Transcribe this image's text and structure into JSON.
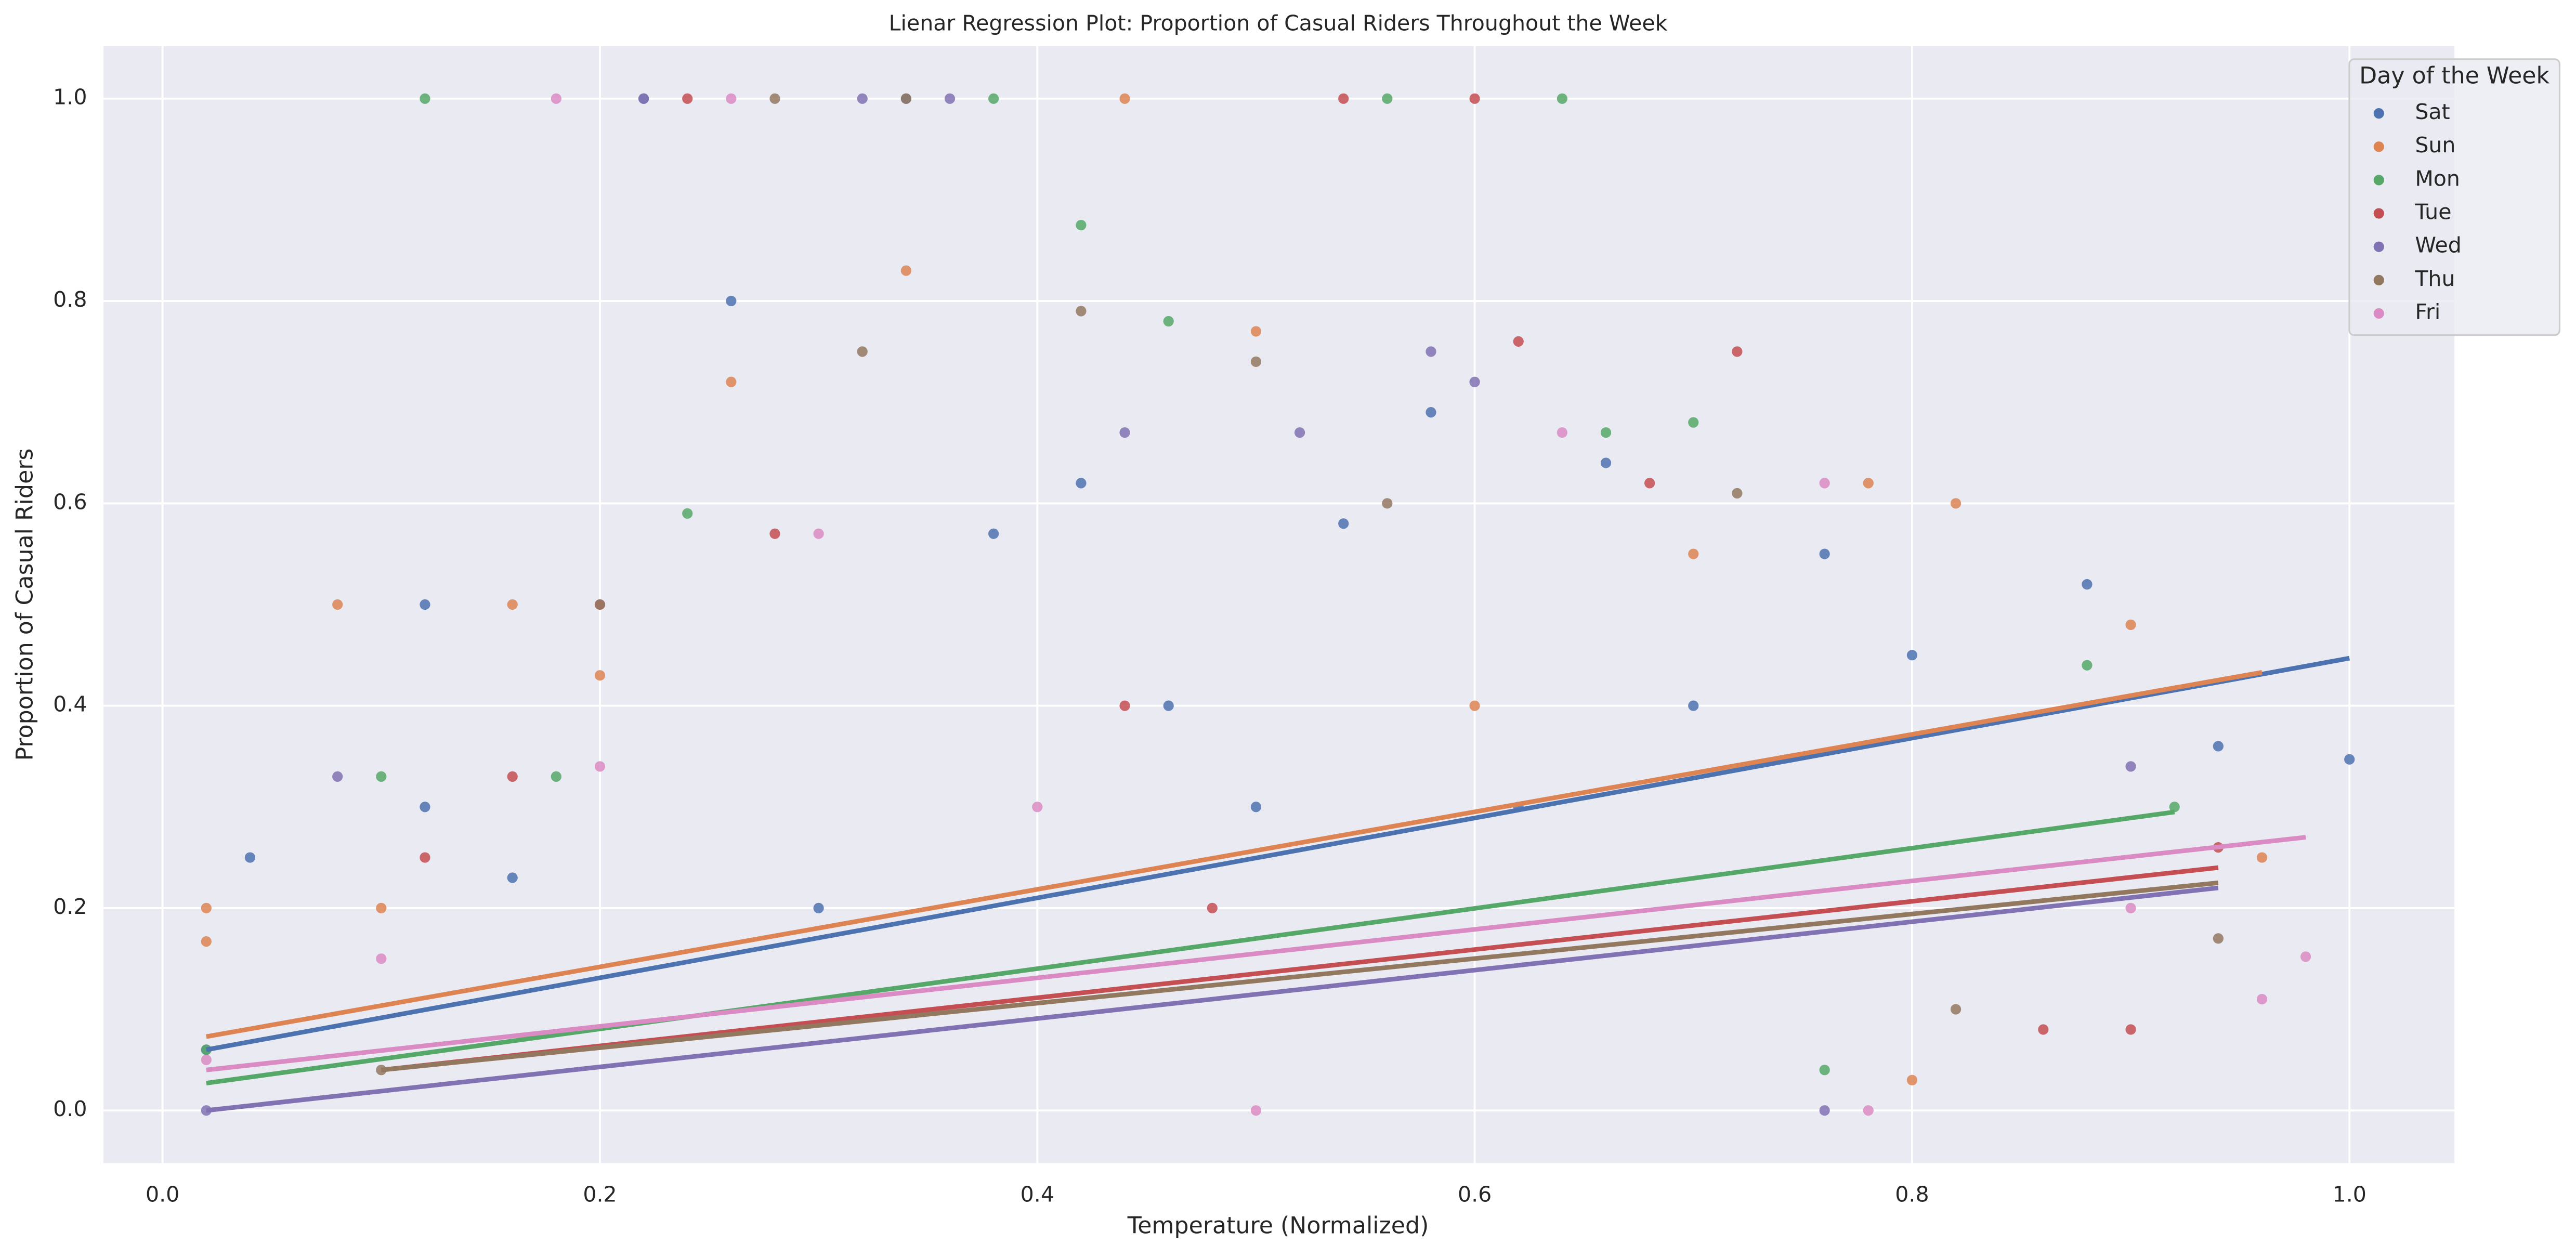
{
  "chart_data": {
    "type": "scatter",
    "title": "Lienar Regression Plot: Proportion of Casual Riders Throughout the Week",
    "x_label": "Temperature (Normalized)",
    "y_label": "Proportion of Casual Riders",
    "legend_title": "Day of the Week",
    "legend_position": "upper right",
    "grid": true,
    "xlim": [
      -0.027,
      1.048
    ],
    "ylim": [
      -0.052,
      1.052
    ],
    "xticks": [
      {
        "value": 0,
        "label": "0.0"
      },
      0.2,
      0.4,
      0.6,
      0.8,
      {
        "value": 1,
        "label": "1.0"
      }
    ],
    "yticks": [
      {
        "value": 0,
        "label": "0.0"
      },
      0.2,
      0.4,
      0.6,
      0.8,
      {
        "value": 1,
        "label": "1.0"
      }
    ],
    "series": [
      {
        "name": "Sat",
        "color": "#4c72b0",
        "x": [
          0.02,
          0.04,
          0.12,
          0.16,
          0.22,
          0.26,
          0.3,
          0.34,
          0.38,
          0.42,
          0.46,
          0.5,
          0.54,
          0.58,
          0.62,
          0.66,
          0.7,
          0.76,
          0.8,
          0.88,
          0.94,
          1.0,
          0.12
        ],
        "values": [
          0.06,
          0.25,
          0.5,
          0.23,
          1.0,
          0.8,
          0.2,
          1.0,
          0.57,
          0.62,
          0.4,
          0.3,
          0.58,
          0.69,
          0.3,
          0.64,
          0.4,
          0.55,
          0.45,
          0.52,
          0.36,
          0.347,
          0.3
        ],
        "fit": {
          "x": [
            0.02,
            1.0
          ],
          "values": [
            0.06,
            0.447
          ]
        }
      },
      {
        "name": "Sun",
        "color": "#dd8452",
        "x": [
          0.02,
          0.08,
          0.1,
          0.16,
          0.2,
          0.26,
          0.34,
          0.44,
          0.5,
          0.6,
          0.7,
          0.78,
          0.82,
          0.9,
          0.96,
          0.8,
          0.02
        ],
        "values": [
          0.2,
          0.5,
          0.2,
          0.5,
          0.43,
          0.72,
          0.83,
          1.0,
          0.77,
          0.4,
          0.55,
          0.62,
          0.6,
          0.48,
          0.25,
          0.03,
          0.167
        ],
        "fit": {
          "x": [
            0.02,
            0.96
          ],
          "values": [
            0.073,
            0.433
          ]
        }
      },
      {
        "name": "Mon",
        "color": "#55a868",
        "x": [
          0.02,
          0.1,
          0.12,
          0.18,
          0.24,
          0.38,
          0.42,
          0.46,
          0.56,
          0.64,
          0.66,
          0.7,
          0.76,
          0.88,
          0.92
        ],
        "values": [
          0.06,
          0.33,
          1.0,
          0.33,
          0.59,
          1.0,
          0.875,
          0.78,
          1.0,
          1.0,
          0.67,
          0.68,
          0.04,
          0.44,
          0.3
        ],
        "fit": {
          "x": [
            0.02,
            0.92
          ],
          "values": [
            0.027,
            0.295
          ]
        }
      },
      {
        "name": "Tue",
        "color": "#c44e52",
        "x": [
          0.12,
          0.16,
          0.2,
          0.24,
          0.28,
          0.44,
          0.48,
          0.54,
          0.6,
          0.62,
          0.68,
          0.72,
          0.86,
          0.9,
          0.94
        ],
        "values": [
          0.25,
          0.33,
          0.5,
          1.0,
          0.57,
          0.4,
          0.2,
          1.0,
          1.0,
          0.76,
          0.62,
          0.75,
          0.08,
          0.08,
          0.26
        ],
        "fit": {
          "x": [
            0.1,
            0.94
          ],
          "values": [
            0.04,
            0.24
          ]
        }
      },
      {
        "name": "Wed",
        "color": "#8172b3",
        "x": [
          0.02,
          0.08,
          0.22,
          0.32,
          0.36,
          0.44,
          0.52,
          0.58,
          0.6,
          0.76,
          0.9
        ],
        "values": [
          0.0,
          0.33,
          1.0,
          1.0,
          1.0,
          0.67,
          0.67,
          0.75,
          0.72,
          0.0,
          0.34
        ],
        "fit": {
          "x": [
            0.02,
            0.94
          ],
          "values": [
            0.0,
            0.22
          ]
        }
      },
      {
        "name": "Thu",
        "color": "#937860",
        "x": [
          0.1,
          0.2,
          0.28,
          0.32,
          0.34,
          0.42,
          0.5,
          0.56,
          0.72,
          0.82,
          0.94
        ],
        "values": [
          0.04,
          0.5,
          1.0,
          0.75,
          1.0,
          0.79,
          0.74,
          0.6,
          0.61,
          0.1,
          0.17
        ],
        "fit": {
          "x": [
            0.1,
            0.94
          ],
          "values": [
            0.04,
            0.225
          ]
        }
      },
      {
        "name": "Fri",
        "color": "#da8bc3",
        "x": [
          0.02,
          0.1,
          0.18,
          0.2,
          0.26,
          0.3,
          0.4,
          0.5,
          0.64,
          0.76,
          0.78,
          0.9,
          0.96,
          0.98
        ],
        "values": [
          0.05,
          0.15,
          1.0,
          0.34,
          1.0,
          0.57,
          0.3,
          0.0,
          0.67,
          0.62,
          0.0,
          0.2,
          0.11,
          0.152
        ],
        "fit": {
          "x": [
            0.02,
            0.98
          ],
          "values": [
            0.04,
            0.27
          ]
        }
      }
    ]
  }
}
